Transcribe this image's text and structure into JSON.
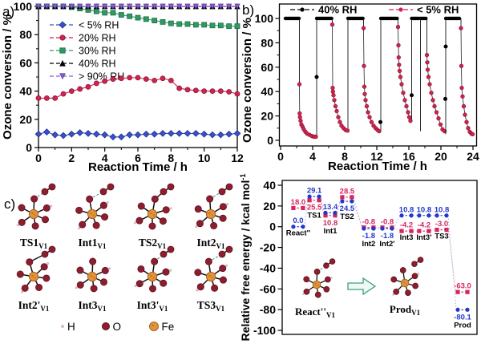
{
  "figure": {
    "background": "#ffffff"
  },
  "chart_data": [
    {
      "id": "a",
      "type": "line",
      "panel_label": "a)",
      "xlabel": "Reaction Time / h",
      "ylabel": "Ozone conversion / %",
      "xlim": [
        0,
        12
      ],
      "ylim": [
        0,
        100
      ],
      "xticks": [
        0,
        2,
        4,
        6,
        8,
        10,
        12
      ],
      "yticks": [
        0,
        20,
        40,
        60,
        80,
        100
      ],
      "legend_position": "upper-left",
      "x_start": 0,
      "x_step": 0.5,
      "series": [
        {
          "name": "< 5% RH",
          "color": "#3a50c8",
          "edge": "#1e2f8f",
          "marker": "diamond",
          "values": [
            9.5,
            11,
            9,
            8.5,
            9.5,
            10.5,
            10,
            9.5,
            9,
            7.5,
            7.5,
            9,
            9,
            9.5,
            9.5,
            10,
            10,
            10,
            10,
            10,
            9.5,
            9,
            9,
            9.5,
            10
          ]
        },
        {
          "name": "20% RH",
          "color": "#cf2352",
          "edge": "#8e1530",
          "marker": "circle",
          "values": [
            35,
            35,
            35,
            38,
            40,
            41.5,
            43,
            45.5,
            47,
            48.5,
            49,
            49.5,
            49.5,
            48.5,
            47.5,
            49,
            47.5,
            42,
            41,
            40.5,
            40,
            40,
            40,
            39.5,
            38
          ]
        },
        {
          "name": "30% RH",
          "color": "#2e9b63",
          "edge": "#1c6b45",
          "marker": "square",
          "values": [
            100,
            100,
            100,
            100,
            99.5,
            98.5,
            97.5,
            96.5,
            95.5,
            95.5,
            94,
            93,
            92,
            91,
            90,
            89,
            88,
            87.5,
            87.5,
            87,
            87,
            86.5,
            86.5,
            86,
            86
          ]
        },
        {
          "name": "40% RH",
          "color": "#000000",
          "edge": "#000000",
          "marker": "triangle-up",
          "values": [
            100,
            100,
            100,
            100,
            100,
            100,
            100,
            100,
            100,
            100,
            100,
            100,
            100,
            100,
            100,
            100,
            100,
            100,
            100,
            100,
            100,
            100,
            100,
            100,
            100
          ]
        },
        {
          "name": "> 90% RH",
          "color": "#8a5fd0",
          "edge": "#5a3aa0",
          "marker": "triangle-down",
          "values": [
            100,
            100,
            100,
            100,
            100,
            100,
            100,
            100,
            100,
            100,
            100,
            100,
            100,
            100,
            100,
            100,
            100,
            100,
            100,
            100,
            100,
            100,
            100,
            100,
            100
          ]
        }
      ]
    },
    {
      "id": "b",
      "type": "scatter-line",
      "panel_label": "b)",
      "xlabel": "Reaction Time / h",
      "ylabel": "Ozone conversion / %",
      "xlim": [
        0,
        24
      ],
      "ylim": [
        0,
        100
      ],
      "xticks": [
        0,
        4,
        8,
        12,
        16,
        20,
        24
      ],
      "yticks": [
        0,
        20,
        40,
        60,
        80,
        100
      ],
      "legend": [
        {
          "name": "40% RH",
          "color": "#000000"
        },
        {
          "name": "< 5% RH",
          "color": "#cf2352"
        }
      ],
      "black_on_level": 100,
      "black_segments": [
        [
          0.6,
          2.3
        ],
        [
          4.5,
          6.4
        ],
        [
          8.4,
          10.3
        ],
        [
          12.5,
          14.6
        ],
        [
          16.35,
          17.2
        ],
        [
          17.45,
          18.2
        ],
        [
          20.6,
          22.45
        ]
      ],
      "black_extra_points": [
        [
          4.5,
          52
        ],
        [
          12.45,
          15
        ],
        [
          16.35,
          37
        ],
        [
          20.55,
          34
        ],
        [
          20.6,
          77
        ]
      ],
      "red_decays": [
        [
          [
            2.35,
            46
          ],
          [
            2.38,
            22
          ],
          [
            2.42,
            19
          ],
          [
            2.5,
            16
          ],
          [
            2.6,
            13
          ],
          [
            2.75,
            11
          ],
          [
            2.9,
            9
          ],
          [
            3.1,
            7
          ],
          [
            3.3,
            5.5
          ],
          [
            3.6,
            4.5
          ],
          [
            3.9,
            3.5
          ],
          [
            4.15,
            3
          ],
          [
            4.4,
            3
          ]
        ],
        [
          [
            6.45,
            95
          ],
          [
            6.5,
            43
          ],
          [
            6.53,
            40
          ],
          [
            6.6,
            37
          ],
          [
            6.7,
            33
          ],
          [
            6.85,
            28
          ],
          [
            7.0,
            24
          ],
          [
            7.2,
            19
          ],
          [
            7.4,
            15
          ],
          [
            7.6,
            12
          ],
          [
            7.85,
            10
          ],
          [
            8.1,
            8.5
          ],
          [
            8.35,
            8
          ]
        ],
        [
          [
            10.35,
            92
          ],
          [
            10.4,
            61
          ],
          [
            10.45,
            44
          ],
          [
            10.5,
            38
          ],
          [
            10.6,
            33
          ],
          [
            10.75,
            28
          ],
          [
            10.9,
            23
          ],
          [
            11.1,
            19
          ],
          [
            11.35,
            15
          ],
          [
            11.6,
            12
          ],
          [
            11.85,
            10
          ],
          [
            12.1,
            8.5
          ],
          [
            12.3,
            7.5
          ]
        ],
        [
          [
            14.65,
            93
          ],
          [
            14.7,
            78
          ],
          [
            14.73,
            68
          ],
          [
            14.78,
            62
          ],
          [
            14.85,
            57
          ],
          [
            14.95,
            52
          ],
          [
            15.1,
            46
          ],
          [
            15.3,
            39
          ],
          [
            15.5,
            33
          ],
          [
            15.7,
            28
          ],
          [
            15.9,
            23
          ],
          [
            16.05,
            19
          ],
          [
            16.2,
            16
          ]
        ],
        [
          [
            18.25,
            70
          ],
          [
            18.3,
            64
          ],
          [
            18.35,
            58
          ],
          [
            18.45,
            52
          ],
          [
            18.6,
            46
          ],
          [
            18.8,
            39
          ],
          [
            19.0,
            33
          ],
          [
            19.2,
            28
          ],
          [
            19.45,
            23
          ],
          [
            19.7,
            18
          ],
          [
            19.95,
            13
          ],
          [
            20.2,
            9
          ],
          [
            20.45,
            7.5
          ]
        ],
        [
          [
            22.5,
            92
          ],
          [
            22.55,
            61
          ],
          [
            22.6,
            43
          ],
          [
            22.7,
            36
          ],
          [
            22.85,
            28
          ],
          [
            23.0,
            21
          ],
          [
            23.2,
            15
          ],
          [
            23.4,
            10
          ],
          [
            23.6,
            7
          ],
          [
            23.8,
            5.5
          ],
          [
            23.95,
            5
          ]
        ]
      ]
    },
    {
      "id": "energy",
      "type": "level-diagram",
      "ylabel_main": "Relative free energy / kcal mol",
      "ylabel_sup": "-1",
      "ylim": [
        -100,
        40
      ],
      "yticks": [
        40,
        20,
        0,
        -20,
        -40,
        -60,
        -80,
        -100
      ],
      "series_colors": {
        "blue": "#2238c8",
        "red": "#d62560"
      },
      "levels": [
        {
          "name": "React''",
          "fx": 0.082,
          "blue": 0.0,
          "red": 18.0,
          "blue_pos": "above",
          "red_pos": "above"
        },
        {
          "name": "TS1",
          "fx": 0.165,
          "blue": 29.1,
          "red": 25.5,
          "blue_pos": "above",
          "red_pos": "below"
        },
        {
          "name": "Int1",
          "fx": 0.247,
          "blue": 13.4,
          "red": 10.8,
          "blue_pos": "above",
          "red_pos": "below"
        },
        {
          "name": "TS2",
          "fx": 0.333,
          "blue": 24.5,
          "red": 28.5,
          "blue_pos": "below",
          "red_pos": "above"
        },
        {
          "name": "Int2",
          "fx": 0.444,
          "blue": -1.8,
          "red": -0.8,
          "blue_pos": "below",
          "red_pos": "above"
        },
        {
          "name": "Int2'",
          "fx": 0.539,
          "blue": -1.8,
          "red": -0.8,
          "blue_pos": "below",
          "red_pos": "above"
        },
        {
          "name": "Int3",
          "fx": 0.638,
          "blue": 10.8,
          "red": -4.2,
          "blue_pos": "above",
          "red_pos": "above"
        },
        {
          "name": "Int3'",
          "fx": 0.728,
          "blue": 10.8,
          "red": -4.2,
          "blue_pos": "above",
          "red_pos": "above"
        },
        {
          "name": "TS3",
          "fx": 0.819,
          "blue": 10.8,
          "red": -3.0,
          "blue_pos": "above",
          "red_pos": "above"
        },
        {
          "name": "Prod",
          "fx": 0.926,
          "blue": -80.1,
          "red": -63.0,
          "blue_pos": "below",
          "red_pos": "above"
        }
      ],
      "inset": {
        "react_main": "React''",
        "react_sub": "V1",
        "prod_main": "Prod",
        "prod_sub": "V1"
      }
    }
  ],
  "panel_c": {
    "panel_label": "c)",
    "molecules": [
      {
        "main": "TS1",
        "sub": "V1",
        "frag": "dash",
        "rot": 0
      },
      {
        "main": "Int1",
        "sub": "V1",
        "frag": "dash",
        "rot": 12
      },
      {
        "main": "TS2",
        "sub": "V1",
        "frag": "bond",
        "rot": -8
      },
      {
        "main": "Int2",
        "sub": "V1",
        "frag": "dash",
        "rot": 6
      },
      {
        "main": "Int2'",
        "sub": "V1",
        "frag": "bond",
        "rot": 18
      },
      {
        "main": "Int3",
        "sub": "V1",
        "frag": "none",
        "rot": 0
      },
      {
        "main": "Int3'",
        "sub": "V1",
        "frag": "dash",
        "rot": -6
      },
      {
        "main": "TS3",
        "sub": "V1",
        "frag": "dash",
        "rot": 10
      }
    ],
    "atom_legend": [
      {
        "symbol": "H",
        "color": "#d9bcc0",
        "r": 2
      },
      {
        "symbol": "O",
        "color": "#8e1d2e",
        "r": 4.5
      },
      {
        "symbol": "Fe",
        "color": "#e2923e",
        "r": 5.5
      }
    ]
  }
}
